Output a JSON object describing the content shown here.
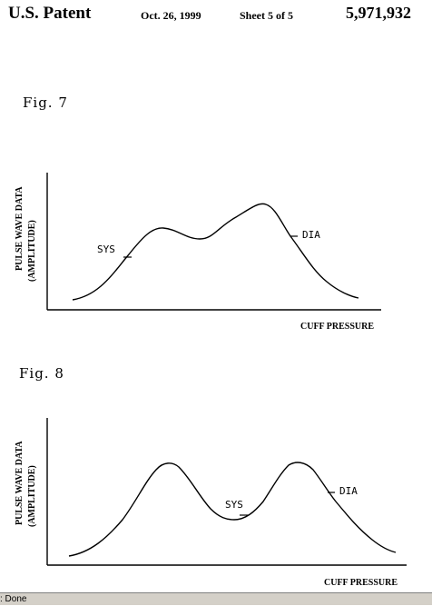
{
  "header": {
    "patent_label": "U.S. Patent",
    "date": "Oct. 26, 1999",
    "sheet": "Sheet 5 of 5",
    "patent_number": "5,971,932"
  },
  "figures": [
    {
      "title": "Fig. 7",
      "y_label_line1": "PULSE WAVE DATA",
      "y_label_line2": "(AMPLITUDE)",
      "x_label": "CUFF PRESSURE",
      "sys_label": "SYS",
      "dia_label": "DIA"
    },
    {
      "title": "Fig. 8",
      "y_label_line1": "PULSE WAVE DATA",
      "y_label_line2": "(AMPLITUDE)",
      "x_label": "CUFF PRESSURE",
      "sys_label": "SYS",
      "dia_label": "DIA"
    }
  ],
  "statusbar": {
    "text": ": Done"
  }
}
